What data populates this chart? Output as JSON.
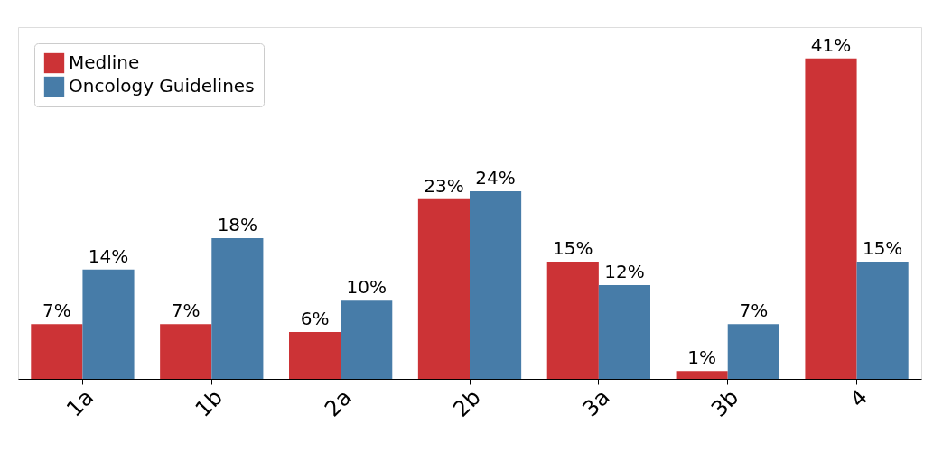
{
  "chart_data": {
    "type": "bar",
    "categories": [
      "1a",
      "1b",
      "2a",
      "2b",
      "3a",
      "3b",
      "4"
    ],
    "series": [
      {
        "name": "Medline",
        "color": "#cc3336",
        "values": [
          7,
          7,
          6,
          23,
          15,
          1,
          41
        ],
        "value_labels": [
          "7%",
          "7%",
          "6%",
          "23%",
          "15%",
          "1%",
          "41%"
        ]
      },
      {
        "name": "Oncology Guidelines",
        "color": "#477ca8",
        "values": [
          14,
          18,
          10,
          24,
          12,
          7,
          15
        ],
        "value_labels": [
          "14%",
          "18%",
          "10%",
          "24%",
          "12%",
          "7%",
          "15%"
        ]
      }
    ],
    "legend": "top left",
    "grid": false,
    "tick_labels": "x"
  }
}
